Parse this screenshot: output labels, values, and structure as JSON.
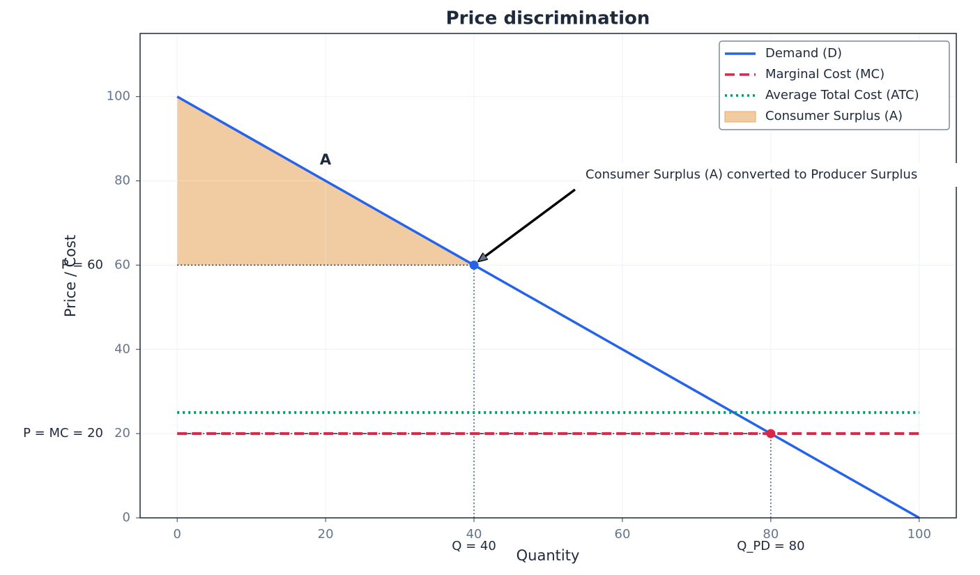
{
  "chart_data": {
    "type": "line",
    "title": "Price discrimination",
    "xlabel": "Quantity",
    "ylabel": "Price / Cost",
    "xlim": [
      -5,
      105
    ],
    "ylim": [
      0,
      115
    ],
    "xticks": [
      0,
      20,
      40,
      60,
      80,
      100
    ],
    "yticks": [
      0,
      20,
      40,
      60,
      80,
      100
    ],
    "grid": true,
    "legend": "upper right",
    "series": [
      {
        "name": "Demand (D)",
        "color": "#2563eb",
        "style": "solid",
        "x": [
          0,
          100
        ],
        "values": [
          100,
          0
        ]
      },
      {
        "name": "Marginal Cost (MC)",
        "color": "#dc2645",
        "style": "dashed",
        "x": [
          0,
          100
        ],
        "values": [
          20,
          20
        ]
      },
      {
        "name": "Average Total Cost (ATC)",
        "color": "#059669",
        "style": "dotted",
        "x": [
          0,
          100
        ],
        "values": [
          25,
          25
        ]
      },
      {
        "name": "Consumer Surplus (A)",
        "color": "#e8a862",
        "style": "area",
        "x": [
          0,
          40
        ],
        "values": [
          100,
          60
        ],
        "base": 60
      }
    ],
    "points": [
      {
        "x": 40,
        "y": 60,
        "color": "#2563eb",
        "x_label": "Q = 40",
        "y_label": "P = 60"
      },
      {
        "x": 80,
        "y": 20,
        "color": "#dc2645",
        "x_label": "Q_PD = 80",
        "y_label": "P = MC = 20"
      }
    ],
    "annotations": [
      "A",
      "Consumer Surplus (A) converted to Producer Surplus"
    ]
  }
}
